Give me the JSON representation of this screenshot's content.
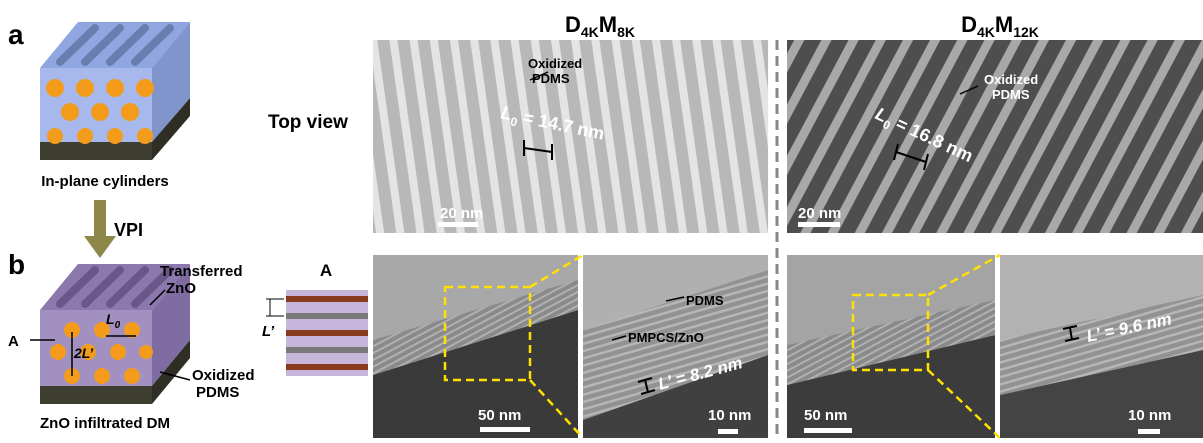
{
  "panel_a": {
    "label": "a",
    "caption": "In-plane cylinders"
  },
  "process": {
    "label": "VPI"
  },
  "panel_b": {
    "label": "b",
    "caption": "ZnO infiltrated DM",
    "transferred": [
      "Transferred",
      "ZnO"
    ],
    "oxidized": [
      "Oxidized",
      "PDMS"
    ],
    "section": "A",
    "period": [
      "L",
      "0"
    ],
    "spacing": "2L’"
  },
  "layer_diagram": {
    "section": "A",
    "spacing": "L’"
  },
  "row_label": "Top view",
  "samples": [
    {
      "name": [
        "D",
        "4K",
        "M",
        "8K"
      ],
      "top": {
        "annotation": [
          "Oxidized",
          "PDMS"
        ],
        "period": [
          "L",
          "0",
          " = 14.7 nm"
        ],
        "scale": "20 nm"
      },
      "cross": {
        "scale_left": "50 nm",
        "labels": [
          "PDMS",
          "PMPCS/ZnO"
        ],
        "spacing": "L’ = 8.2 nm",
        "scale_right": "10 nm"
      }
    },
    {
      "name": [
        "D",
        "4K",
        "M",
        "12K"
      ],
      "top": {
        "annotation": [
          "Oxidized",
          "PDMS"
        ],
        "period": [
          "L",
          "0",
          " = 16.8 nm"
        ],
        "scale": "20 nm"
      },
      "cross": {
        "scale_left": "50 nm",
        "labels": [],
        "spacing": "L’ = 9.6 nm",
        "scale_right": "10 nm"
      }
    }
  ]
}
